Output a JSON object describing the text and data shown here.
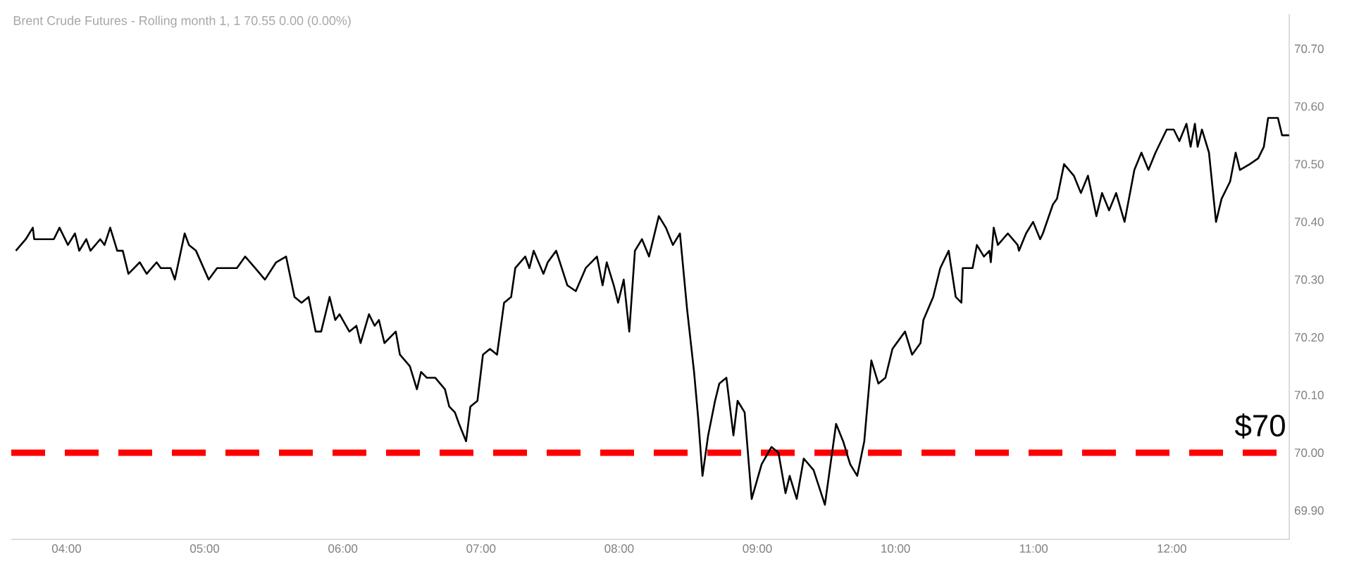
{
  "chart_data": {
    "type": "line",
    "title": "Brent Crude Futures - Rolling month 1, 1  70.55  0.00 (0.00%)",
    "x": [
      3.633,
      3.705,
      3.756,
      3.766,
      3.908,
      3.949,
      4.01,
      4.061,
      4.092,
      4.143,
      4.173,
      4.244,
      4.275,
      4.316,
      4.367,
      4.407,
      4.448,
      4.53,
      4.58,
      4.652,
      4.682,
      4.754,
      4.784,
      4.855,
      4.886,
      4.937,
      5.029,
      5.09,
      5.161,
      5.233,
      5.293,
      5.365,
      5.436,
      5.517,
      5.589,
      5.65,
      5.701,
      5.752,
      5.803,
      5.843,
      5.904,
      5.945,
      5.976,
      6.047,
      6.098,
      6.128,
      6.189,
      6.23,
      6.261,
      6.301,
      6.383,
      6.413,
      6.485,
      6.536,
      6.566,
      6.607,
      6.668,
      6.739,
      6.77,
      6.811,
      6.841,
      6.892,
      6.923,
      6.974,
      7.014,
      7.065,
      7.116,
      7.167,
      7.218,
      7.248,
      7.32,
      7.35,
      7.381,
      7.452,
      7.483,
      7.544,
      7.625,
      7.686,
      7.758,
      7.839,
      7.88,
      7.91,
      7.961,
      7.992,
      8.033,
      8.073,
      8.114,
      8.165,
      8.216,
      8.287,
      8.338,
      8.389,
      8.44,
      8.491,
      8.542,
      8.572,
      8.603,
      8.644,
      8.694,
      8.725,
      8.776,
      8.827,
      8.857,
      8.908,
      8.959,
      9.031,
      9.102,
      9.153,
      9.204,
      9.234,
      9.285,
      9.336,
      9.407,
      9.489,
      9.57,
      9.621,
      9.672,
      9.723,
      9.774,
      9.825,
      9.876,
      9.927,
      9.978,
      10.069,
      10.12,
      10.181,
      10.202,
      10.273,
      10.324,
      10.385,
      10.436,
      10.477,
      10.487,
      10.558,
      10.589,
      10.64,
      10.68,
      10.69,
      10.711,
      10.741,
      10.813,
      10.884,
      10.894,
      10.945,
      10.996,
      11.047,
      11.067,
      11.139,
      11.169,
      11.22,
      11.291,
      11.342,
      11.393,
      11.454,
      11.495,
      11.546,
      11.597,
      11.658,
      11.729,
      11.78,
      11.831,
      11.882,
      11.963,
      12.014,
      12.055,
      12.106,
      12.136,
      12.167,
      12.187,
      12.218,
      12.269,
      12.32,
      12.36,
      12.422,
      12.462,
      12.493,
      12.564,
      12.625,
      12.666,
      12.697,
      12.768,
      12.798,
      12.849
    ],
    "series": [
      {
        "color": "#000000",
        "values": [
          70.35,
          70.37,
          70.39,
          70.37,
          70.37,
          70.39,
          70.36,
          70.38,
          70.35,
          70.37,
          70.35,
          70.37,
          70.36,
          70.39,
          70.35,
          70.35,
          70.31,
          70.33,
          70.31,
          70.33,
          70.32,
          70.32,
          70.3,
          70.38,
          70.36,
          70.35,
          70.3,
          70.32,
          70.32,
          70.32,
          70.34,
          70.32,
          70.3,
          70.33,
          70.34,
          70.27,
          70.26,
          70.27,
          70.21,
          70.21,
          70.27,
          70.23,
          70.24,
          70.21,
          70.22,
          70.19,
          70.24,
          70.22,
          70.23,
          70.19,
          70.21,
          70.17,
          70.15,
          70.11,
          70.14,
          70.13,
          70.13,
          70.11,
          70.08,
          70.07,
          70.05,
          70.02,
          70.08,
          70.09,
          70.17,
          70.18,
          70.17,
          70.26,
          70.27,
          70.32,
          70.34,
          70.32,
          70.35,
          70.31,
          70.33,
          70.35,
          70.29,
          70.28,
          70.32,
          70.34,
          70.29,
          70.33,
          70.29,
          70.26,
          70.3,
          70.21,
          70.35,
          70.37,
          70.34,
          70.41,
          70.39,
          70.36,
          70.38,
          70.25,
          70.14,
          70.06,
          69.96,
          70.03,
          70.09,
          70.12,
          70.13,
          70.03,
          70.09,
          70.07,
          69.92,
          69.98,
          70.01,
          70.0,
          69.93,
          69.96,
          69.92,
          69.99,
          69.97,
          69.91,
          70.05,
          70.02,
          69.98,
          69.96,
          70.02,
          70.16,
          70.12,
          70.13,
          70.18,
          70.21,
          70.17,
          70.19,
          70.23,
          70.27,
          70.32,
          70.35,
          70.27,
          70.26,
          70.32,
          70.32,
          70.36,
          70.34,
          70.35,
          70.33,
          70.39,
          70.36,
          70.38,
          70.36,
          70.35,
          70.38,
          70.4,
          70.37,
          70.38,
          70.43,
          70.44,
          70.5,
          70.48,
          70.45,
          70.48,
          70.41,
          70.45,
          70.42,
          70.45,
          70.4,
          70.49,
          70.52,
          70.49,
          70.52,
          70.56,
          70.56,
          70.54,
          70.57,
          70.53,
          70.57,
          70.53,
          70.56,
          70.52,
          70.4,
          70.44,
          70.47,
          70.52,
          70.49,
          70.5,
          70.51,
          70.53,
          70.58,
          70.58,
          70.55,
          70.55
        ]
      }
    ],
    "xlim": [
      3.6,
      12.85
    ],
    "ylim": [
      69.85,
      70.76
    ],
    "xticks": [
      {
        "value": 4,
        "label": "04:00"
      },
      {
        "value": 5,
        "label": "05:00"
      },
      {
        "value": 6,
        "label": "06:00"
      },
      {
        "value": 7,
        "label": "07:00"
      },
      {
        "value": 8,
        "label": "08:00"
      },
      {
        "value": 9,
        "label": "09:00"
      },
      {
        "value": 10,
        "label": "10:00"
      },
      {
        "value": 11,
        "label": "11:00"
      },
      {
        "value": 12,
        "label": "12:00"
      }
    ],
    "yticks": [
      {
        "value": 69.9,
        "label": "69.90"
      },
      {
        "value": 70.0,
        "label": "70.00"
      },
      {
        "value": 70.1,
        "label": "70.10"
      },
      {
        "value": 70.2,
        "label": "70.20"
      },
      {
        "value": 70.3,
        "label": "70.30"
      },
      {
        "value": 70.4,
        "label": "70.40"
      },
      {
        "value": 70.5,
        "label": "70.50"
      },
      {
        "value": 70.6,
        "label": "70.60"
      },
      {
        "value": 70.7,
        "label": "70.70"
      }
    ],
    "ref_lines": [
      {
        "axis": "y",
        "value": 70,
        "label": "$70",
        "color": "#ff0000",
        "line_style": "dashed"
      }
    ]
  }
}
